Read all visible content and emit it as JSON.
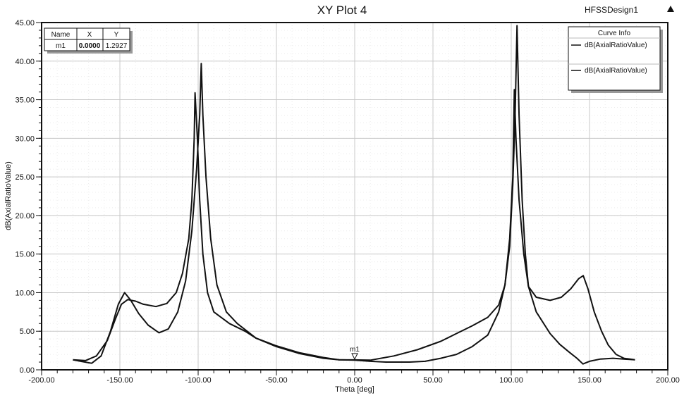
{
  "header": {
    "design_name": "HFSSDesign1",
    "collapse_icon": "triangle-up-icon"
  },
  "marker_table": {
    "headers": [
      "Name",
      "X",
      "Y"
    ],
    "rows": [
      [
        "m1",
        "0.0000",
        "1.2927"
      ]
    ]
  },
  "legend": {
    "title": "Curve Info",
    "entries": [
      "dB(AxialRatioValue)",
      "dB(AxialRatioValue)"
    ]
  },
  "colors": {
    "curve": "#111111",
    "grid": "#c8c8c8"
  },
  "chart_data": {
    "type": "line",
    "title": "XY Plot 4",
    "xlabel": "Theta [deg]",
    "ylabel": "dB(AxialRatioValue)",
    "xlim": [
      -200,
      200
    ],
    "ylim": [
      0,
      45
    ],
    "xticks": [
      "-200.00",
      "-150.00",
      "-100.00",
      "-50.00",
      "0.00",
      "50.00",
      "100.00",
      "150.00",
      "200.00"
    ],
    "yticks": [
      "0.00",
      "5.00",
      "10.00",
      "15.00",
      "20.00",
      "25.00",
      "30.00",
      "35.00",
      "40.00",
      "45.00"
    ],
    "grid": true,
    "legend_position": "top-right",
    "marker": {
      "name": "m1",
      "x": 0,
      "y": 1.2927
    },
    "series": [
      {
        "name": "dB(AxialRatioValue)",
        "points": [
          [
            -180,
            1.3
          ],
          [
            -175,
            1.1
          ],
          [
            -168,
            0.85
          ],
          [
            -162,
            1.8
          ],
          [
            -156,
            5
          ],
          [
            -151,
            8.5
          ],
          [
            -147,
            10
          ],
          [
            -143,
            9
          ],
          [
            -138,
            7.3
          ],
          [
            -132,
            5.8
          ],
          [
            -125,
            4.8
          ],
          [
            -119,
            5.3
          ],
          [
            -113,
            7.5
          ],
          [
            -108,
            11.5
          ],
          [
            -104,
            18
          ],
          [
            -101,
            26
          ],
          [
            -99,
            33
          ],
          [
            -98,
            39.7
          ],
          [
            -97,
            33
          ],
          [
            -95,
            25
          ],
          [
            -92,
            17
          ],
          [
            -88,
            11
          ],
          [
            -82,
            7.5
          ],
          [
            -75,
            6
          ],
          [
            -63,
            4.1
          ],
          [
            -50,
            3
          ],
          [
            -35,
            2.1
          ],
          [
            -20,
            1.5
          ],
          [
            -10,
            1.3
          ],
          [
            0,
            1.29
          ],
          [
            10,
            1.25
          ],
          [
            25,
            1.8
          ],
          [
            40,
            2.6
          ],
          [
            55,
            3.7
          ],
          [
            65,
            4.7
          ],
          [
            75,
            5.7
          ],
          [
            85,
            6.8
          ],
          [
            92,
            8.4
          ],
          [
            96,
            11
          ],
          [
            99,
            16
          ],
          [
            101,
            24
          ],
          [
            102.5,
            33
          ],
          [
            103.7,
            44.6
          ],
          [
            105,
            33
          ],
          [
            107,
            22
          ],
          [
            109,
            15
          ],
          [
            111,
            10.8
          ],
          [
            116,
            9.4
          ],
          [
            124.8,
            9.0
          ],
          [
            132,
            9.4
          ],
          [
            138,
            10.5
          ],
          [
            143,
            11.8
          ],
          [
            146,
            12.2
          ],
          [
            149,
            10.5
          ],
          [
            153,
            7.5
          ],
          [
            157.7,
            5
          ],
          [
            162,
            3.2
          ],
          [
            167,
            2
          ],
          [
            172,
            1.5
          ],
          [
            179,
            1.3
          ]
        ]
      },
      {
        "name": "dB(AxialRatioValue)",
        "points": [
          [
            -180,
            1.3
          ],
          [
            -172,
            1.2
          ],
          [
            -165,
            1.8
          ],
          [
            -158,
            3.8
          ],
          [
            -153,
            6.5
          ],
          [
            -149,
            8.5
          ],
          [
            -145,
            9.1
          ],
          [
            -140,
            8.9
          ],
          [
            -135,
            8.5
          ],
          [
            -127,
            8.2
          ],
          [
            -120,
            8.6
          ],
          [
            -114,
            10
          ],
          [
            -110,
            12.5
          ],
          [
            -106,
            17
          ],
          [
            -104,
            22
          ],
          [
            -102.5,
            30
          ],
          [
            -102,
            35.9
          ],
          [
            -100.5,
            30
          ],
          [
            -99,
            22
          ],
          [
            -97,
            15
          ],
          [
            -94,
            10
          ],
          [
            -90,
            7.5
          ],
          [
            -80,
            6
          ],
          [
            -70,
            5
          ],
          [
            -63,
            4.1
          ],
          [
            -50,
            3.1
          ],
          [
            -35,
            2.2
          ],
          [
            -20,
            1.6
          ],
          [
            -10,
            1.3
          ],
          [
            0,
            1.25
          ],
          [
            10,
            1.1
          ],
          [
            20,
            1.0
          ],
          [
            35,
            1.0
          ],
          [
            45,
            1.1
          ],
          [
            55,
            1.5
          ],
          [
            65,
            2
          ],
          [
            75,
            3
          ],
          [
            85,
            4.5
          ],
          [
            92,
            7.5
          ],
          [
            96,
            11
          ],
          [
            99,
            17
          ],
          [
            101,
            25
          ],
          [
            102,
            36.3
          ],
          [
            103,
            30
          ],
          [
            105,
            22
          ],
          [
            108,
            15
          ],
          [
            111,
            10.8
          ],
          [
            116,
            7.5
          ],
          [
            124.8,
            4.7
          ],
          [
            131,
            3.3
          ],
          [
            137,
            2.3
          ],
          [
            142,
            1.5
          ],
          [
            145.8,
            0.76
          ],
          [
            150,
            1.1
          ],
          [
            157,
            1.4
          ],
          [
            165,
            1.5
          ],
          [
            172,
            1.4
          ],
          [
            179,
            1.3
          ]
        ]
      }
    ]
  }
}
